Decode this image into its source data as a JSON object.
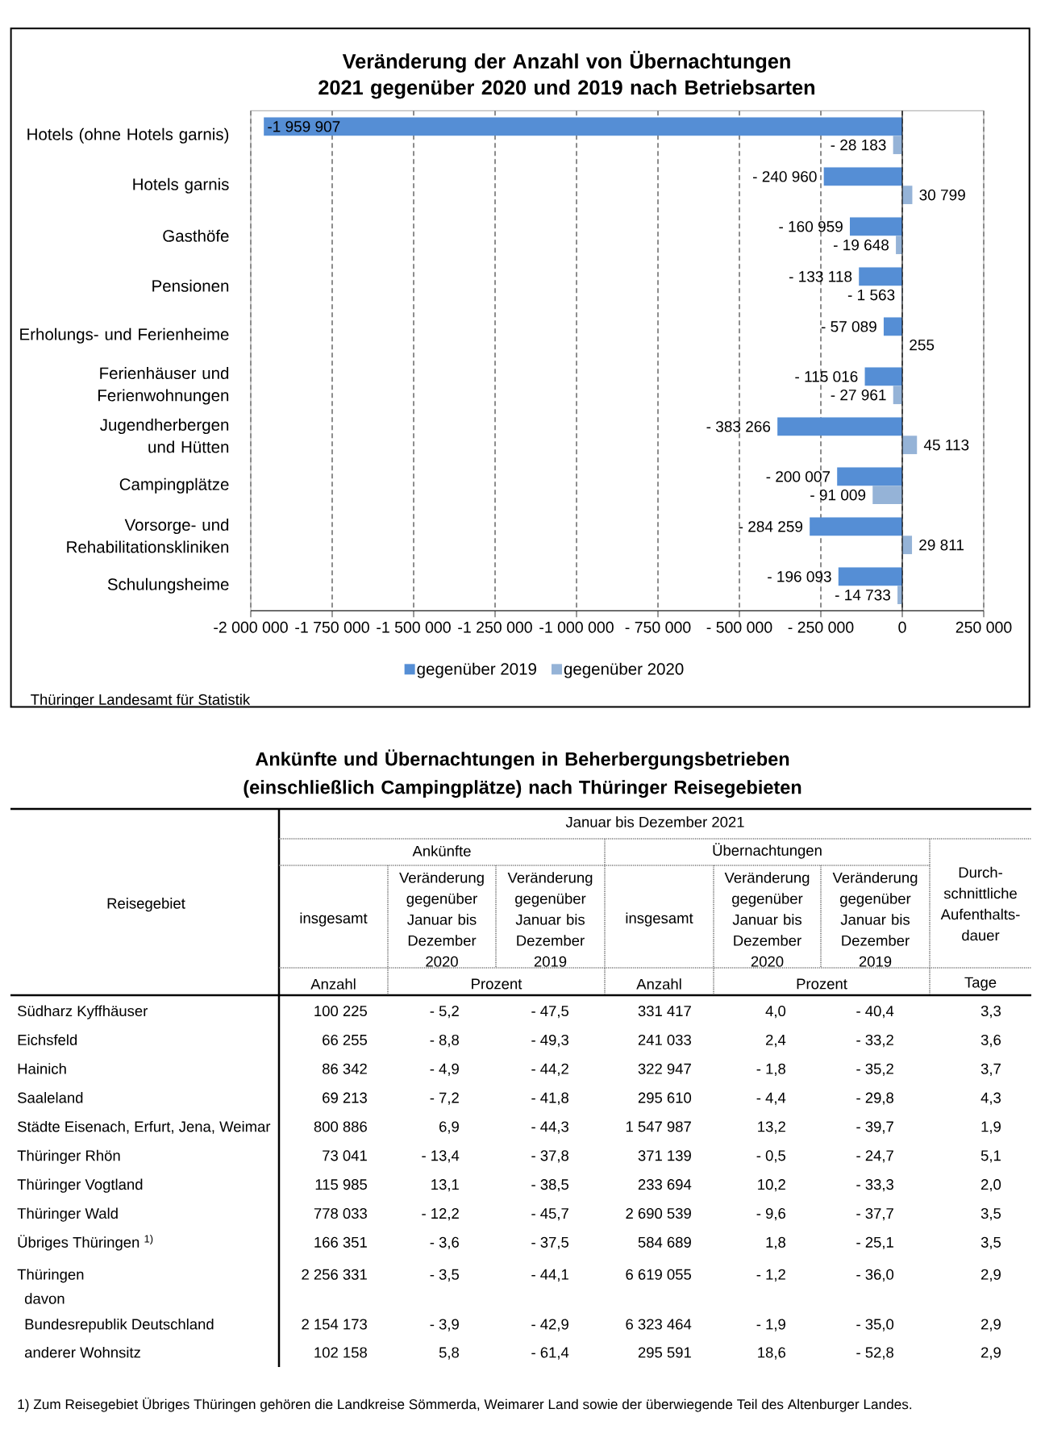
{
  "chart_data": [
    {
      "type": "bar",
      "orientation": "horizontal",
      "title": "Veränderung der Anzahl von Übernachtungen 2021 gegenüber 2020 und 2019 nach Betriebsarten",
      "categories": [
        "Hotels (ohne Hotels garnis)",
        "Hotels garnis",
        "Gasthöfe",
        "Pensionen",
        "Erholungs- und Ferienheime",
        "Ferienhäuser und Ferienwohnungen",
        "Jugendherbergen und Hütten",
        "Campingplätze",
        "Vorsorge- und Rehabilitationskliniken",
        "Schulungsheime"
      ],
      "series": [
        {
          "name": "gegenüber 2019",
          "color": "#558ed5",
          "values": [
            -1959907,
            -240960,
            -160959,
            -133118,
            -57089,
            -115016,
            -383266,
            -200007,
            -284259,
            -196093
          ],
          "value_labels": [
            "-1 959 907",
            "- 240 960",
            "- 160 959",
            "- 133 118",
            "- 57 089",
            "- 115 016",
            "- 383 266",
            "- 200 007",
            "- 284 259",
            "- 196 093"
          ]
        },
        {
          "name": "gegenüber 2020",
          "color": "#95b3d7",
          "values": [
            -28183,
            30799,
            -19648,
            -1563,
            255,
            -27961,
            45113,
            -91009,
            29811,
            -14733
          ],
          "value_labels": [
            "- 28 183",
            "30 799",
            "- 19 648",
            "- 1 563",
            "255",
            "- 27 961",
            "45 113",
            "- 91 009",
            "29 811",
            "- 14 733"
          ]
        }
      ],
      "xlim": [
        -2000000,
        250000
      ],
      "xticks": [
        {
          "value": -2000000,
          "label": "-2 000 000"
        },
        {
          "value": -1750000,
          "label": "-1 750 000"
        },
        {
          "value": -1500000,
          "label": "-1 500 000"
        },
        {
          "value": -1250000,
          "label": "-1 250 000"
        },
        {
          "value": -1000000,
          "label": "-1 000 000"
        },
        {
          "value": -750000,
          "label": "- 750 000"
        },
        {
          "value": -500000,
          "label": "- 500 000"
        },
        {
          "value": -250000,
          "label": "- 250 000"
        },
        0,
        {
          "value": 250000,
          "label": "250 000"
        }
      ],
      "grid": "x",
      "legend": "bottom",
      "annotations": [
        "Thüringer Landesamt für Statistik"
      ]
    },
    {
      "type": "other",
      "title": "Ankünfte und Übernachtungen in Beherbergungsbetrieben (einschließlich Campingplätze) nach Thüringer Reisegebieten",
      "categories": [
        "Südharz Kyffhäuser",
        "Eichsfeld",
        "Hainich",
        "Saaleland",
        "Städte Eisenach, Erfurt, Jena, Weimar",
        "Thüringer Rhön",
        "Thüringer Vogtland",
        "Thüringer Wald",
        "Übriges Thüringen $^{1)}$",
        "Thüringen",
        "davon",
        "Bundesrepublik Deutschland",
        "anderer Wohnsitz"
      ],
      "series": [
        {
          "name": "insgesamt",
          "values": [
            100225,
            66255,
            86342,
            69213,
            800886,
            73041,
            115985,
            778033,
            166351,
            2256331,
            null,
            2154173,
            102158
          ],
          "value_labels": [
            "100 225",
            "66 255",
            "86 342",
            "69 213",
            "800 886",
            "73 041",
            "115 985",
            "778 033",
            "166 351",
            "2 256 331",
            null,
            "2 154 173",
            "102 158"
          ]
        },
        {
          "name": "Veränderung gegenüber Januar bis Dezember 2020",
          "values": [
            -5.2,
            -8.8,
            -4.9,
            -7.2,
            6.9,
            -13.4,
            13.1,
            -12.2,
            -3.6,
            -3.5,
            null,
            -3.9,
            5.8
          ],
          "value_labels": [
            "- 5,2",
            "- 8,8",
            "- 4,9",
            "- 7,2",
            "6,9",
            "- 13,4",
            "13,1",
            "- 12,2",
            "- 3,6",
            "- 3,5",
            null,
            "- 3,9",
            "5,8"
          ]
        },
        {
          "name": "Veränderung gegenüber Januar bis Dezember 2019",
          "values": [
            -47.5,
            -49.3,
            -44.2,
            -41.8,
            -44.3,
            -37.8,
            -38.5,
            -45.7,
            -37.5,
            -44.1,
            null,
            -42.9,
            -61.4
          ],
          "value_labels": [
            "- 47,5",
            "- 49,3",
            "- 44,2",
            "- 41,8",
            "- 44,3",
            "- 37,8",
            "- 38,5",
            "- 45,7",
            "- 37,5",
            "- 44,1",
            null,
            "- 42,9",
            "- 61,4"
          ]
        },
        {
          "name": "insgesamt",
          "values": [
            331417,
            241033,
            322947,
            295610,
            1547987,
            371139,
            233694,
            2690539,
            584689,
            6619055,
            null,
            6323464,
            295591
          ],
          "value_labels": [
            "331 417",
            "241 033",
            "322 947",
            "295 610",
            "1 547 987",
            "371 139",
            "233 694",
            "2 690 539",
            "584 689",
            "6 619 055",
            null,
            "6 323 464",
            "295 591"
          ]
        },
        {
          "name": "Veränderung gegenüber Januar bis Dezember 2020",
          "values": [
            4.0,
            2.4,
            -1.8,
            -4.4,
            13.2,
            -0.5,
            10.2,
            -9.6,
            1.8,
            -1.2,
            null,
            -1.9,
            18.6
          ],
          "value_labels": [
            "4,0",
            "2,4",
            "- 1,8",
            "- 4,4",
            "13,2",
            "- 0,5",
            "10,2",
            "- 9,6",
            "1,8",
            "- 1,2",
            null,
            "- 1,9",
            "18,6"
          ]
        },
        {
          "name": "Veränderung gegenüber Januar bis Dezember 2019",
          "values": [
            -40.4,
            -33.2,
            -35.2,
            -29.8,
            -39.7,
            -24.7,
            -33.3,
            -37.7,
            -25.1,
            -36.0,
            null,
            -35.0,
            -52.8
          ],
          "value_labels": [
            "- 40,4",
            "- 33,2",
            "- 35,2",
            "- 29,8",
            "- 39,7",
            "- 24,7",
            "- 33,3",
            "- 37,7",
            "- 25,1",
            "- 36,0",
            null,
            "- 35,0",
            "- 52,8"
          ]
        },
        {
          "name": "Durch-schnittliche Aufenthalts-dauer",
          "values": [
            3.3,
            3.6,
            3.7,
            4.3,
            1.9,
            5.1,
            2.0,
            3.5,
            3.5,
            2.9,
            null,
            2.9,
            2.9
          ],
          "value_labels": [
            "3,3",
            "3,6",
            "3,7",
            "4,3",
            "1,9",
            "5,1",
            "2,0",
            "3,5",
            "3,5",
            "2,9",
            null,
            "2,9",
            "2,9"
          ]
        }
      ],
      "annotations": [
        "Reisegebiet",
        "Januar bis Dezember 2021",
        "Ankünfte",
        "Übernachtungen",
        "Anzahl",
        "Prozent",
        "Anzahl",
        "Prozent",
        "Tage",
        "1) Zum Reisegebiet Übriges Thüringen gehören die Landkreise Sömmerda, Weimarer Land sowie der überwiegende Teil des Altenburger Landes."
      ]
    }
  ]
}
